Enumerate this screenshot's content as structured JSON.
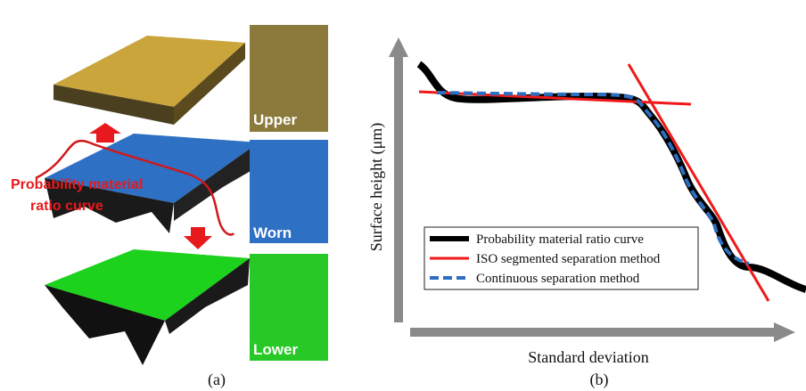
{
  "panel_a": {
    "caption": "(a)",
    "curve_label": [
      "Probability material",
      "ratio curve"
    ],
    "tiles": [
      "Upper",
      "Worn",
      "Lower"
    ]
  },
  "panel_b": {
    "caption": "(b)",
    "y_label": "Surface  height (μm)",
    "x_label": "Standard deviation",
    "legend": [
      "Probability material ratio curve",
      "ISO segmented separation method",
      "Continuous separation method"
    ]
  }
}
